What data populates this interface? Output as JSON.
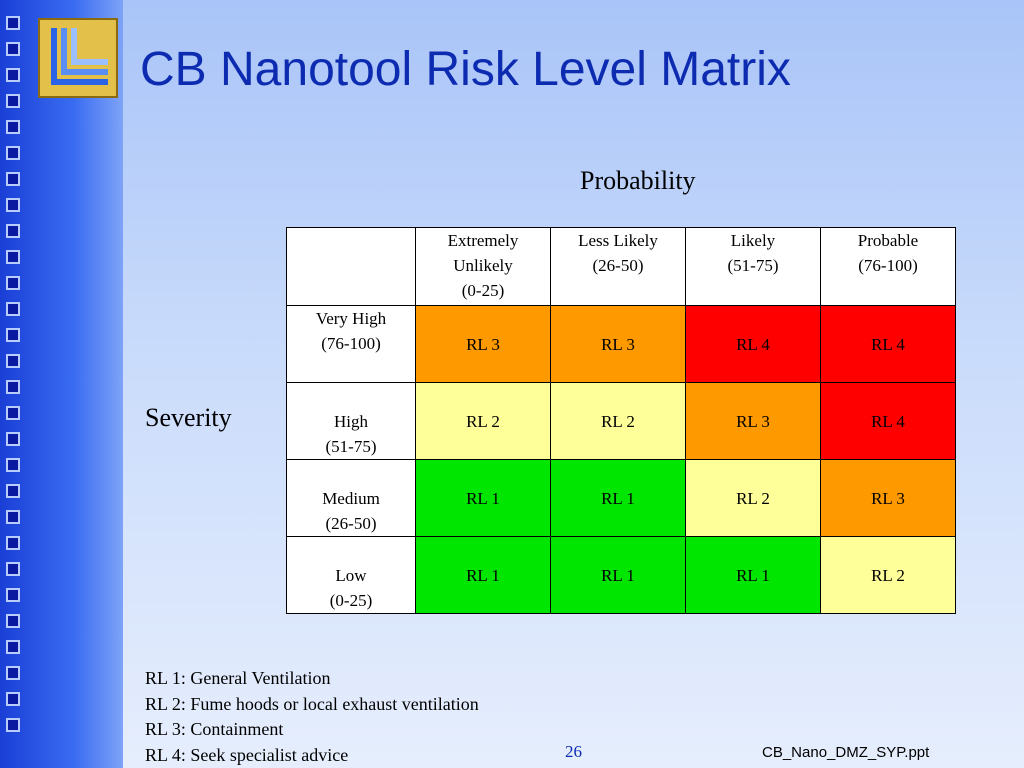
{
  "slide": {
    "title": "CB Nanotool Risk Level Matrix",
    "page_number": "26",
    "filename": "CB_Nano_DMZ_SYP.ppt"
  },
  "matrix": {
    "axis_probability": "Probability",
    "axis_severity": "Severity",
    "columns": [
      {
        "line1": "Extremely",
        "line2": "Unlikely",
        "line3": "(0-25)"
      },
      {
        "line1": "Less Likely",
        "line2": "(26-50)",
        "line3": ""
      },
      {
        "line1": "Likely",
        "line2": "(51-75)",
        "line3": ""
      },
      {
        "line1": "Probable",
        "line2": "(76-100)",
        "line3": ""
      }
    ],
    "rows": [
      {
        "label": "Very High",
        "range": "(76-100)",
        "cells": [
          "RL 3",
          "RL 3",
          "RL 4",
          "RL 4"
        ]
      },
      {
        "label": "High",
        "range": "(51-75)",
        "cells": [
          "RL 2",
          "RL 2",
          "RL 3",
          "RL 4"
        ]
      },
      {
        "label": "Medium",
        "range": "(26-50)",
        "cells": [
          "RL 1",
          "RL 1",
          "RL 2",
          "RL 3"
        ]
      },
      {
        "label": "Low",
        "range": "(0-25)",
        "cells": [
          "RL 1",
          "RL 1",
          "RL 1",
          "RL 2"
        ]
      }
    ],
    "colors": {
      "RL 1": "#00e600",
      "RL 2": "#ffff99",
      "RL 3": "#ff9900",
      "RL 4": "#ff0000"
    }
  },
  "legend": [
    "RL 1: General Ventilation",
    "RL 2: Fume hoods or local exhaust ventilation",
    "RL 3: Containment",
    "RL 4: Seek specialist advice"
  ]
}
